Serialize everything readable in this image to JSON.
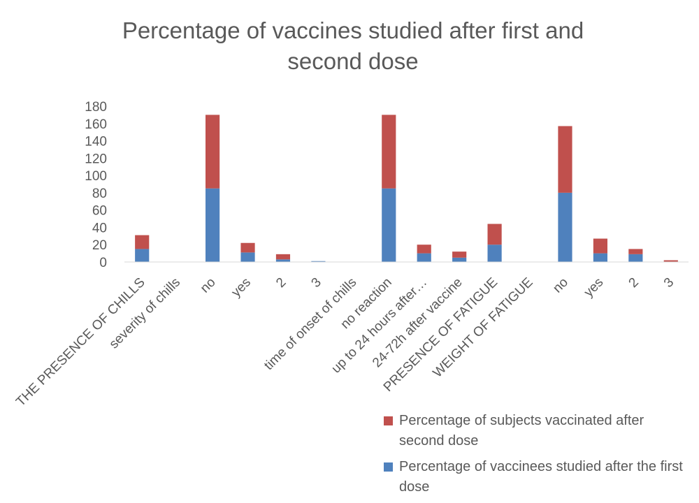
{
  "chart_data": {
    "type": "bar",
    "stacked": true,
    "title_lines": [
      "Percentage of vaccines studied after first and",
      "second dose"
    ],
    "categories": [
      "THE PRESENCE OF CHILLS",
      "severity of chills",
      "no",
      "yes",
      "2",
      "3",
      "time of onset of chills",
      "no reaction",
      "up to 24 hours after…",
      "24-72h after vaccine",
      "PRESENCE OF FATIGUE",
      "WEIGHT OF FATIGUE",
      "no",
      "yes",
      "2",
      "3"
    ],
    "series": [
      {
        "name": "Percentage of vaccinees studied after the first dose",
        "color": "#4f81bd",
        "values": [
          15,
          0,
          85,
          11,
          3,
          1,
          0,
          85,
          10,
          5,
          20,
          0,
          80,
          10,
          9,
          0
        ]
      },
      {
        "name": "Percentage of subjects vaccinated after second dose",
        "color": "#c0504d",
        "values": [
          16,
          0,
          85,
          11,
          6,
          0,
          0,
          85,
          10,
          7,
          24,
          0,
          77,
          17,
          6,
          2
        ]
      }
    ],
    "ylim": [
      0,
      180
    ],
    "yticks": [
      0,
      20,
      40,
      60,
      80,
      100,
      120,
      140,
      160,
      180
    ],
    "grid": false,
    "legend_position": "bottom-right",
    "legend_order": [
      1,
      0
    ]
  }
}
